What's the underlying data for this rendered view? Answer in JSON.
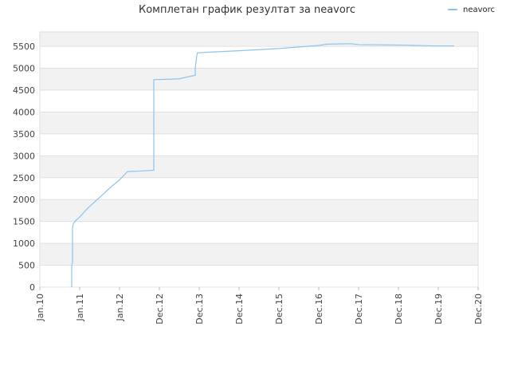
{
  "chart_data": {
    "type": "line",
    "title": "Комплетан график резултат за neavorc",
    "series": [
      {
        "name": "neavorc",
        "color": "#8cc4ee",
        "x": [
          0.8,
          0.8,
          0.82,
          0.82,
          0.84,
          0.9,
          1.0,
          1.2,
          1.5,
          1.8,
          2.0,
          2.2,
          2.5,
          2.86,
          2.86,
          3.3,
          3.5,
          3.9,
          3.9,
          3.95,
          4.3,
          5.0,
          6.0,
          7.0,
          7.2,
          7.8,
          8.0,
          9.0,
          9.9,
          10.4
        ],
        "values": [
          0,
          500,
          550,
          1350,
          1450,
          1520,
          1600,
          1800,
          2050,
          2300,
          2450,
          2640,
          2650,
          2670,
          4740,
          4750,
          4760,
          4840,
          5000,
          5350,
          5370,
          5400,
          5450,
          5520,
          5550,
          5560,
          5540,
          5530,
          5510,
          5510
        ]
      }
    ],
    "xlim": [
      0,
      11
    ],
    "xticks": [
      {
        "value": 0,
        "label": "Jan.10"
      },
      {
        "value": 1,
        "label": "Jan.11"
      },
      {
        "value": 2,
        "label": "Jan.12"
      },
      {
        "value": 3,
        "label": "Dec.12"
      },
      {
        "value": 4,
        "label": "Dec.13"
      },
      {
        "value": 5,
        "label": "Dec.14"
      },
      {
        "value": 6,
        "label": "Dec.15"
      },
      {
        "value": 7,
        "label": "Dec.16"
      },
      {
        "value": 8,
        "label": "Dec.17"
      },
      {
        "value": 9,
        "label": "Dec.18"
      },
      {
        "value": 10,
        "label": "Dec.19"
      },
      {
        "value": 11,
        "label": "Dec.20"
      }
    ],
    "ylim": [
      0,
      5830
    ],
    "yticks": [
      0,
      500,
      1000,
      1500,
      2000,
      2500,
      3000,
      3500,
      4000,
      4500,
      5000,
      5500
    ],
    "grid": true,
    "legend": "top-right"
  }
}
